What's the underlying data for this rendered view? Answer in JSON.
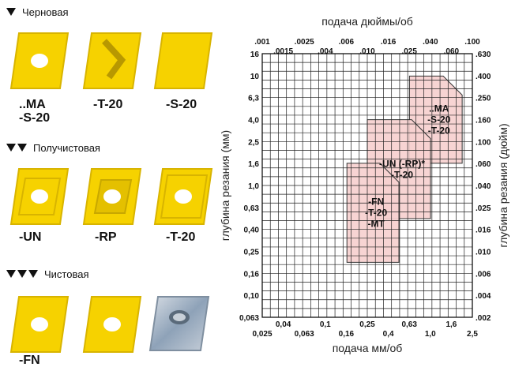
{
  "categories": [
    {
      "label": "Черновая",
      "marks": 1
    },
    {
      "label": "Получистовая",
      "marks": 2
    },
    {
      "label": "Чистовая",
      "marks": 3
    }
  ],
  "inserts": {
    "row1": [
      "..MA\n-S-20",
      "-T-20",
      "-S-20"
    ],
    "row2": [
      "-UN",
      "-RP",
      "-T-20"
    ],
    "row3": [
      "-FN",
      "",
      ""
    ]
  },
  "colors": {
    "insert": "#f6d200",
    "insert_edge": "#d8b400",
    "region": "#f6d0cf",
    "grid": "#222222"
  },
  "chart_data": {
    "type": "area",
    "x_top_title": "подача дюймы/об",
    "x_bottom_title": "подача мм/об",
    "y_left_title": "глубина резания (мм)",
    "y_right_title": "глубина резания (дюйм)",
    "x_bottom_ticks": [
      "0,025",
      "0,04",
      "0,063",
      "0,1",
      "0,16",
      "0,25",
      "0,4",
      "0,63",
      "1,0",
      "1,6",
      "2,5"
    ],
    "x_top_ticks": [
      ".001",
      ".0015",
      ".0025",
      ".004",
      ".006",
      ".010",
      ".016",
      ".025",
      ".040",
      ".060",
      ".100"
    ],
    "y_left_ticks": [
      "0,063",
      "0,10",
      "0,16",
      "0,25",
      "0,40",
      "0,63",
      "1,0",
      "1,6",
      "2,5",
      "4,0",
      "6,3",
      "10",
      "16"
    ],
    "y_right_ticks": [
      ".002",
      ".004",
      ".006",
      ".010",
      ".016",
      ".025",
      ".040",
      ".060",
      ".100",
      ".160",
      ".250",
      ".400",
      ".630"
    ],
    "scale": "log",
    "grid": true,
    "regions": [
      {
        "label": "..MA\n-S-20\n-T-20",
        "x_range": [
          0.63,
          2.0
        ],
        "y_range": [
          1.6,
          10
        ],
        "cut": "top-right"
      },
      {
        "label": "-UN (-RP)*\n-T-20",
        "x_range": [
          0.25,
          1.0
        ],
        "y_range": [
          0.5,
          4.0
        ],
        "cut": "top-right"
      },
      {
        "label": "-FN\n-T-20\n-MT",
        "x_range": [
          0.16,
          0.5
        ],
        "y_range": [
          0.2,
          1.6
        ],
        "cut": "top-right"
      }
    ]
  }
}
